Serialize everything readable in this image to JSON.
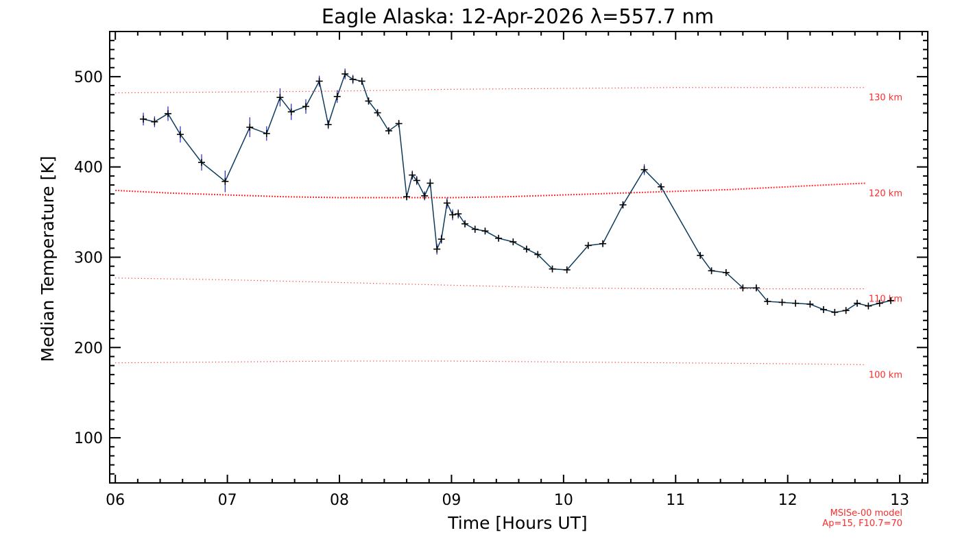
{
  "chart_data": {
    "type": "line",
    "title": "Eagle Alaska: 12-Apr-2026 λ=557.7 nm",
    "xlabel": "Time [Hours UT]",
    "ylabel": "Median Temperature [K]",
    "xlim": [
      5.95,
      13.25
    ],
    "ylim": [
      50,
      550
    ],
    "x_ticks": [
      6,
      7,
      8,
      9,
      10,
      11,
      12,
      13
    ],
    "x_tick_labels": [
      "06",
      "07",
      "08",
      "09",
      "10",
      "11",
      "12",
      "13"
    ],
    "y_ticks": [
      100,
      200,
      300,
      400,
      500
    ],
    "y_tick_labels": [
      "100",
      "200",
      "300",
      "400",
      "500"
    ],
    "series": [
      {
        "name": "Median Temperature",
        "color": "#0b3a5c",
        "marker_color": "#000000",
        "errorbar_color": "#2222cc",
        "x": [
          6.25,
          6.35,
          6.47,
          6.58,
          6.77,
          6.98,
          7.2,
          7.35,
          7.47,
          7.57,
          7.7,
          7.82,
          7.9,
          7.98,
          8.05,
          8.12,
          8.2,
          8.26,
          8.34,
          8.44,
          8.53,
          8.6,
          8.65,
          8.69,
          8.76,
          8.81,
          8.87,
          8.91,
          8.96,
          9.01,
          9.06,
          9.12,
          9.21,
          9.3,
          9.42,
          9.55,
          9.67,
          9.77,
          9.9,
          10.03,
          10.22,
          10.35,
          10.53,
          10.72,
          10.87,
          11.22,
          11.32,
          11.45,
          11.6,
          11.72,
          11.82,
          11.95,
          12.07,
          12.2,
          12.32,
          12.42,
          12.52,
          12.62,
          12.72,
          12.82,
          12.92
        ],
        "y": [
          453,
          450,
          459,
          436,
          405,
          384,
          444,
          437,
          477,
          461,
          467,
          495,
          447,
          478,
          503,
          497,
          495,
          473,
          460,
          440,
          448,
          367,
          391,
          385,
          368,
          382,
          309,
          320,
          360,
          347,
          348,
          337,
          331,
          329,
          321,
          317,
          309,
          303,
          287,
          286,
          313,
          315,
          358,
          397,
          378,
          302,
          285,
          283,
          266,
          266,
          251,
          250,
          249,
          248,
          242,
          239,
          241,
          249,
          246,
          249,
          252
        ],
        "error": [
          7,
          6,
          8,
          9,
          9,
          12,
          11,
          8,
          10,
          9,
          8,
          6,
          5,
          7,
          6,
          5,
          4,
          4,
          4,
          4,
          4,
          4,
          5,
          5,
          5,
          5,
          6,
          5,
          6,
          6,
          5,
          4,
          4,
          3,
          3,
          3,
          3,
          3,
          3,
          3,
          3,
          3,
          4,
          6,
          4,
          3,
          3,
          3,
          3,
          3,
          3,
          3,
          3,
          3,
          3,
          3,
          3,
          3,
          3,
          3,
          3
        ]
      }
    ],
    "reference_lines": [
      {
        "label": "130 km",
        "color": "#ff2a2a",
        "style": "dotted-sparse",
        "x": [
          6.0,
          7.0,
          8.0,
          9.0,
          10.0,
          11.0,
          12.0,
          12.7
        ],
        "y": [
          482,
          483,
          484,
          486,
          487,
          488,
          488,
          488
        ]
      },
      {
        "label": "120 km",
        "color": "#ff2a2a",
        "style": "dotted-dense",
        "x": [
          6.0,
          6.5,
          7.0,
          7.5,
          8.0,
          8.5,
          9.0,
          9.5,
          10.0,
          10.5,
          11.0,
          11.5,
          12.0,
          12.5,
          12.7
        ],
        "y": [
          374,
          371,
          369,
          367,
          366,
          366,
          366,
          367,
          369,
          371,
          373,
          375,
          378,
          381,
          382
        ]
      },
      {
        "label": "110 km",
        "color": "#ff2a2a",
        "style": "dotted-sparse",
        "x": [
          6.0,
          7.0,
          8.0,
          9.0,
          10.0,
          11.0,
          12.0,
          12.7
        ],
        "y": [
          277,
          275,
          272,
          269,
          266,
          265,
          265,
          265
        ]
      },
      {
        "label": "100 km",
        "color": "#ff2a2a",
        "style": "dotted-sparse",
        "x": [
          6.0,
          7.0,
          8.0,
          9.0,
          10.0,
          11.0,
          12.0,
          12.7
        ],
        "y": [
          183,
          184,
          185,
          185,
          184,
          183,
          182,
          181
        ]
      }
    ],
    "annotations": [
      "MSISe-00 model",
      "Ap=15, F10.7=70"
    ],
    "grid": false
  }
}
